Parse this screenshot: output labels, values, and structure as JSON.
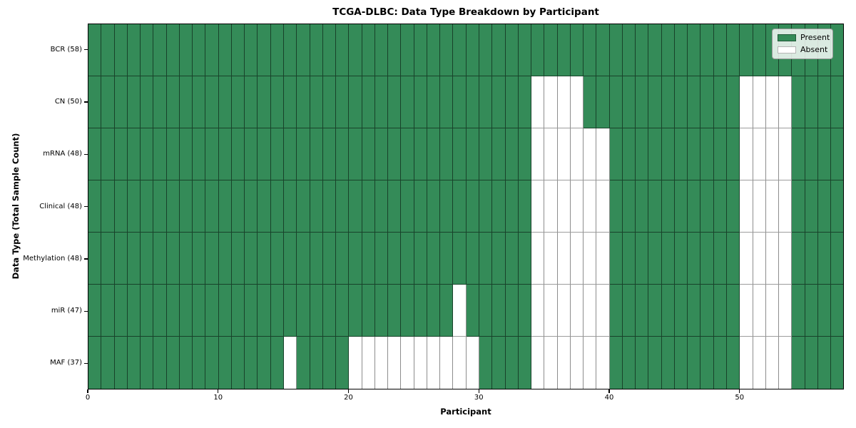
{
  "colors": {
    "present": "#348B58",
    "absent": "#FFFFFF",
    "plot_border": "#000000",
    "grid_absent": "#8D8D8D"
  },
  "chart_data": {
    "type": "heatmap",
    "title": "TCGA-DLBC: Data Type Breakdown by Participant",
    "xlabel": "Participant",
    "ylabel": "Data Type (Total Sample Count)",
    "n_participants": 58,
    "x_range": [
      0,
      58
    ],
    "x_ticks": [
      0,
      10,
      20,
      30,
      40,
      50
    ],
    "legend_position": "upper right",
    "grid": true,
    "legend": [
      {
        "label": "Present",
        "value": "present"
      },
      {
        "label": "Absent",
        "value": "absent"
      }
    ],
    "rows": [
      {
        "label": "BCR (58)",
        "total": 58,
        "absent": []
      },
      {
        "label": "CN (50)",
        "total": 50,
        "absent": [
          34,
          35,
          36,
          37,
          50,
          51,
          52,
          53
        ]
      },
      {
        "label": "mRNA (48)",
        "total": 48,
        "absent": [
          34,
          35,
          36,
          37,
          38,
          39,
          50,
          51,
          52,
          53
        ]
      },
      {
        "label": "Clinical (48)",
        "total": 48,
        "absent": [
          34,
          35,
          36,
          37,
          38,
          39,
          50,
          51,
          52,
          53
        ]
      },
      {
        "label": "Methylation (48)",
        "total": 48,
        "absent": [
          34,
          35,
          36,
          37,
          38,
          39,
          50,
          51,
          52,
          53
        ]
      },
      {
        "label": "miR (47)",
        "total": 47,
        "absent": [
          28,
          34,
          35,
          36,
          37,
          38,
          39,
          50,
          51,
          52,
          53
        ]
      },
      {
        "label": "MAF (37)",
        "total": 37,
        "absent": [
          15,
          20,
          21,
          22,
          23,
          24,
          25,
          26,
          27,
          28,
          29,
          34,
          35,
          36,
          37,
          38,
          39,
          50,
          51,
          52,
          53
        ]
      }
    ]
  }
}
